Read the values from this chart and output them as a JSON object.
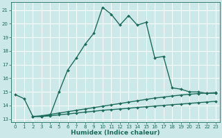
{
  "xlabel": "Humidex (Indice chaleur)",
  "bg_color": "#cce8e8",
  "grid_color": "#ffffff",
  "line_color": "#1a6b5a",
  "xlim": [
    -0.5,
    23.5
  ],
  "ylim": [
    12.8,
    21.6
  ],
  "yticks": [
    13,
    14,
    15,
    16,
    17,
    18,
    19,
    20,
    21
  ],
  "xticks": [
    0,
    1,
    2,
    3,
    4,
    5,
    6,
    7,
    8,
    9,
    10,
    11,
    12,
    13,
    14,
    15,
    16,
    17,
    18,
    19,
    20,
    21,
    22,
    23
  ],
  "series1_x": [
    0,
    1,
    2,
    3,
    4,
    5,
    6,
    7,
    8,
    9,
    10,
    11,
    12,
    13,
    14,
    15,
    16,
    17,
    18,
    19,
    20,
    21,
    22,
    23
  ],
  "series1_y": [
    14.8,
    14.5,
    13.2,
    13.2,
    13.3,
    15.0,
    16.6,
    17.5,
    18.5,
    19.3,
    21.2,
    20.7,
    19.9,
    20.6,
    19.9,
    20.1,
    17.5,
    17.6,
    15.3,
    15.2,
    15.0,
    15.0,
    14.9,
    14.9
  ],
  "series2_x": [
    2,
    3,
    4,
    5,
    6,
    7,
    8,
    9,
    10,
    11,
    12,
    13,
    14,
    15,
    16,
    17,
    18,
    19,
    20,
    21,
    22,
    23
  ],
  "series2_y": [
    13.2,
    13.25,
    13.35,
    13.45,
    13.55,
    13.65,
    13.75,
    13.85,
    13.95,
    14.05,
    14.15,
    14.25,
    14.35,
    14.45,
    14.55,
    14.62,
    14.7,
    14.77,
    14.83,
    14.88,
    14.92,
    14.95
  ],
  "series3_x": [
    2,
    3,
    4,
    5,
    6,
    7,
    8,
    9,
    10,
    11,
    12,
    13,
    14,
    15,
    16,
    17,
    18,
    19,
    20,
    21,
    22,
    23
  ],
  "series3_y": [
    13.2,
    13.2,
    13.25,
    13.32,
    13.38,
    13.45,
    13.52,
    13.58,
    13.65,
    13.7,
    13.75,
    13.8,
    13.86,
    13.91,
    13.96,
    14.01,
    14.06,
    14.11,
    14.16,
    14.21,
    14.26,
    14.31
  ],
  "marker": "D",
  "markersize": 2.0,
  "linewidth": 1.0,
  "tick_fontsize": 5.0,
  "label_fontsize": 6.5
}
